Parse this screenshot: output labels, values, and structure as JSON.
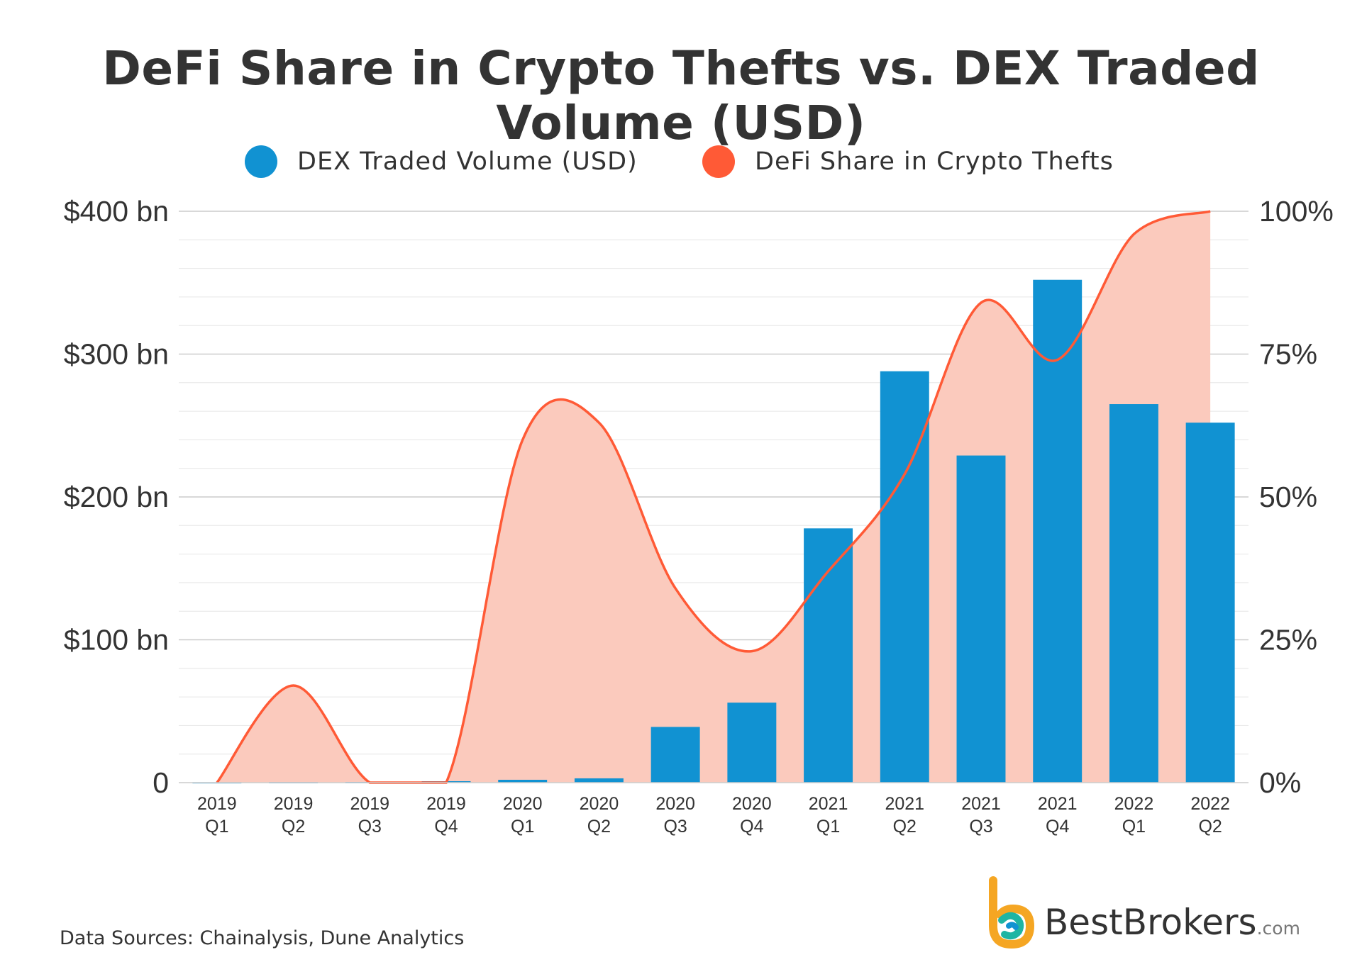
{
  "colors": {
    "bar": "#1192d2",
    "line": "#ff5a36",
    "area": "#fbcabd",
    "grid_major": "#cccccc",
    "grid_minor": "#e6e6e6",
    "text": "#333333"
  },
  "legend": {
    "bar_label": "DEX Traded Volume (USD)",
    "line_label": "DeFi Share in Crypto Thefts"
  },
  "footer": {
    "source": "Data Sources: Chainalysis, Dune Analytics",
    "brand": "BestBrokers",
    "brand_suffix": ".com",
    "brand_icon": "bestbrokers-logo-icon"
  },
  "chart_data": {
    "type": "bar",
    "title": "DeFi Share in Crypto Thefts vs. DEX Traded Volume (USD)",
    "categories": [
      [
        "2019",
        "Q1"
      ],
      [
        "2019",
        "Q2"
      ],
      [
        "2019",
        "Q3"
      ],
      [
        "2019",
        "Q4"
      ],
      [
        "2020",
        "Q1"
      ],
      [
        "2020",
        "Q2"
      ],
      [
        "2020",
        "Q3"
      ],
      [
        "2020",
        "Q4"
      ],
      [
        "2021",
        "Q1"
      ],
      [
        "2021",
        "Q2"
      ],
      [
        "2021",
        "Q3"
      ],
      [
        "2021",
        "Q4"
      ],
      [
        "2022",
        "Q1"
      ],
      [
        "2022",
        "Q2"
      ]
    ],
    "series": [
      {
        "name": "DEX Traded Volume (USD)",
        "type": "bar",
        "axis": "left",
        "values": [
          0.2,
          0.3,
          0.4,
          1,
          2,
          3,
          39,
          56,
          178,
          288,
          229,
          352,
          265,
          252
        ]
      },
      {
        "name": "DeFi Share in Crypto Thefts",
        "type": "area",
        "axis": "right",
        "values": [
          0,
          17,
          0,
          0,
          60,
          63,
          34,
          23,
          37,
          54,
          84,
          74,
          96,
          100
        ]
      }
    ],
    "y_left": {
      "ylim": [
        0,
        400
      ],
      "ticks": [
        0,
        100,
        200,
        300,
        400
      ],
      "tick_labels": [
        "0",
        "$100 bn",
        "$200 bn",
        "$300 bn",
        "$400 bn"
      ]
    },
    "y_right": {
      "ylim": [
        0,
        100
      ],
      "ticks": [
        0,
        25,
        50,
        75,
        100
      ],
      "tick_labels": [
        "0%",
        "25%",
        "50%",
        "75%",
        "100%"
      ]
    },
    "grid": true,
    "legend_position": "top-center"
  }
}
